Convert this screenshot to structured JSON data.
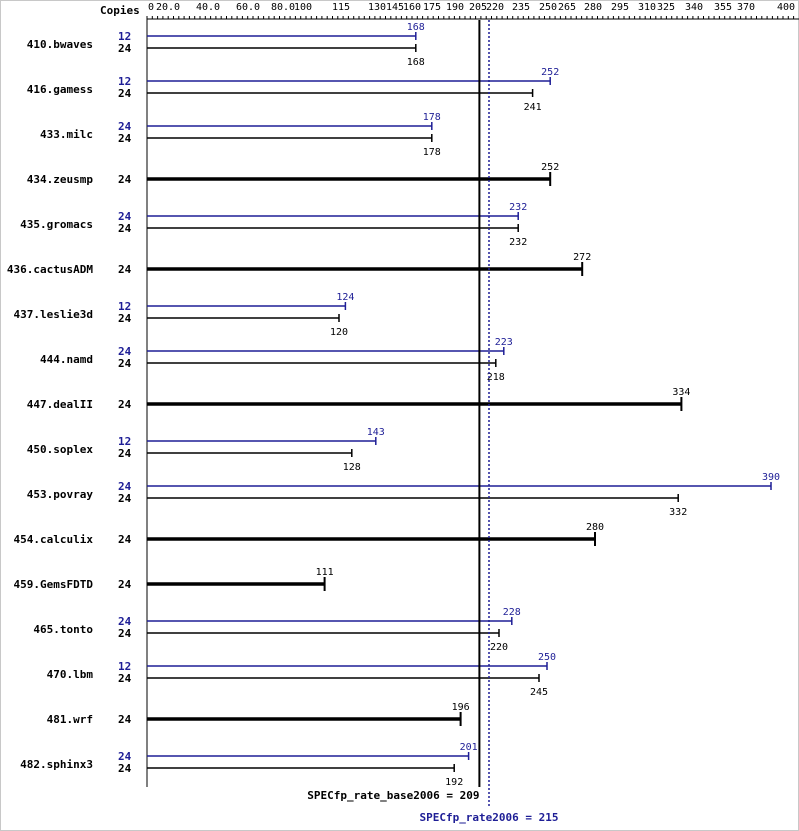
{
  "chart_data": {
    "type": "bar",
    "copies_header": "Copies",
    "x_ticks": [
      "0",
      "20.0",
      "40.0",
      "60.0",
      "80.0",
      "100",
      "115",
      "130",
      "145",
      "160",
      "175",
      "190",
      "205",
      "220",
      "235",
      "250",
      "265",
      "280",
      "295",
      "310",
      "325",
      "340",
      "355",
      "370",
      "400"
    ],
    "benchmarks": [
      {
        "name": "410.bwaves",
        "peak_copies": "12",
        "peak": 168,
        "base_copies": "24",
        "base": 168
      },
      {
        "name": "416.gamess",
        "peak_copies": "12",
        "peak": 252,
        "base_copies": "24",
        "base": 241
      },
      {
        "name": "433.milc",
        "peak_copies": "24",
        "peak": 178,
        "base_copies": "24",
        "base": 178
      },
      {
        "name": "434.zeusmp",
        "peak_copies": null,
        "peak": null,
        "base_copies": "24",
        "base": 252
      },
      {
        "name": "435.gromacs",
        "peak_copies": "24",
        "peak": 232,
        "base_copies": "24",
        "base": 232
      },
      {
        "name": "436.cactusADM",
        "peak_copies": null,
        "peak": null,
        "base_copies": "24",
        "base": 272
      },
      {
        "name": "437.leslie3d",
        "peak_copies": "12",
        "peak": 124,
        "base_copies": "24",
        "base": 120
      },
      {
        "name": "444.namd",
        "peak_copies": "24",
        "peak": 223,
        "base_copies": "24",
        "base": 218
      },
      {
        "name": "447.dealII",
        "peak_copies": null,
        "peak": null,
        "base_copies": "24",
        "base": 334
      },
      {
        "name": "450.soplex",
        "peak_copies": "12",
        "peak": 143,
        "base_copies": "24",
        "base": 128
      },
      {
        "name": "453.povray",
        "peak_copies": "24",
        "peak": 390,
        "base_copies": "24",
        "base": 332
      },
      {
        "name": "454.calculix",
        "peak_copies": null,
        "peak": null,
        "base_copies": "24",
        "base": 280
      },
      {
        "name": "459.GemsFDTD",
        "peak_copies": null,
        "peak": null,
        "base_copies": "24",
        "base": 111
      },
      {
        "name": "465.tonto",
        "peak_copies": "24",
        "peak": 228,
        "base_copies": "24",
        "base": 220
      },
      {
        "name": "470.lbm",
        "peak_copies": "12",
        "peak": 250,
        "base_copies": "24",
        "base": 245
      },
      {
        "name": "481.wrf",
        "peak_copies": null,
        "peak": null,
        "base_copies": "24",
        "base": 196
      },
      {
        "name": "482.sphinx3",
        "peak_copies": "24",
        "peak": 201,
        "base_copies": "24",
        "base": 192
      }
    ],
    "base_summary": {
      "label": "SPECfp_rate_base2006 = 209",
      "value": 209
    },
    "peak_summary": {
      "label": "SPECfp_rate2006 = 215",
      "value": 215
    },
    "colors": {
      "base": "#000000",
      "peak": "#1e1e96",
      "bg": "#ffffff"
    }
  }
}
